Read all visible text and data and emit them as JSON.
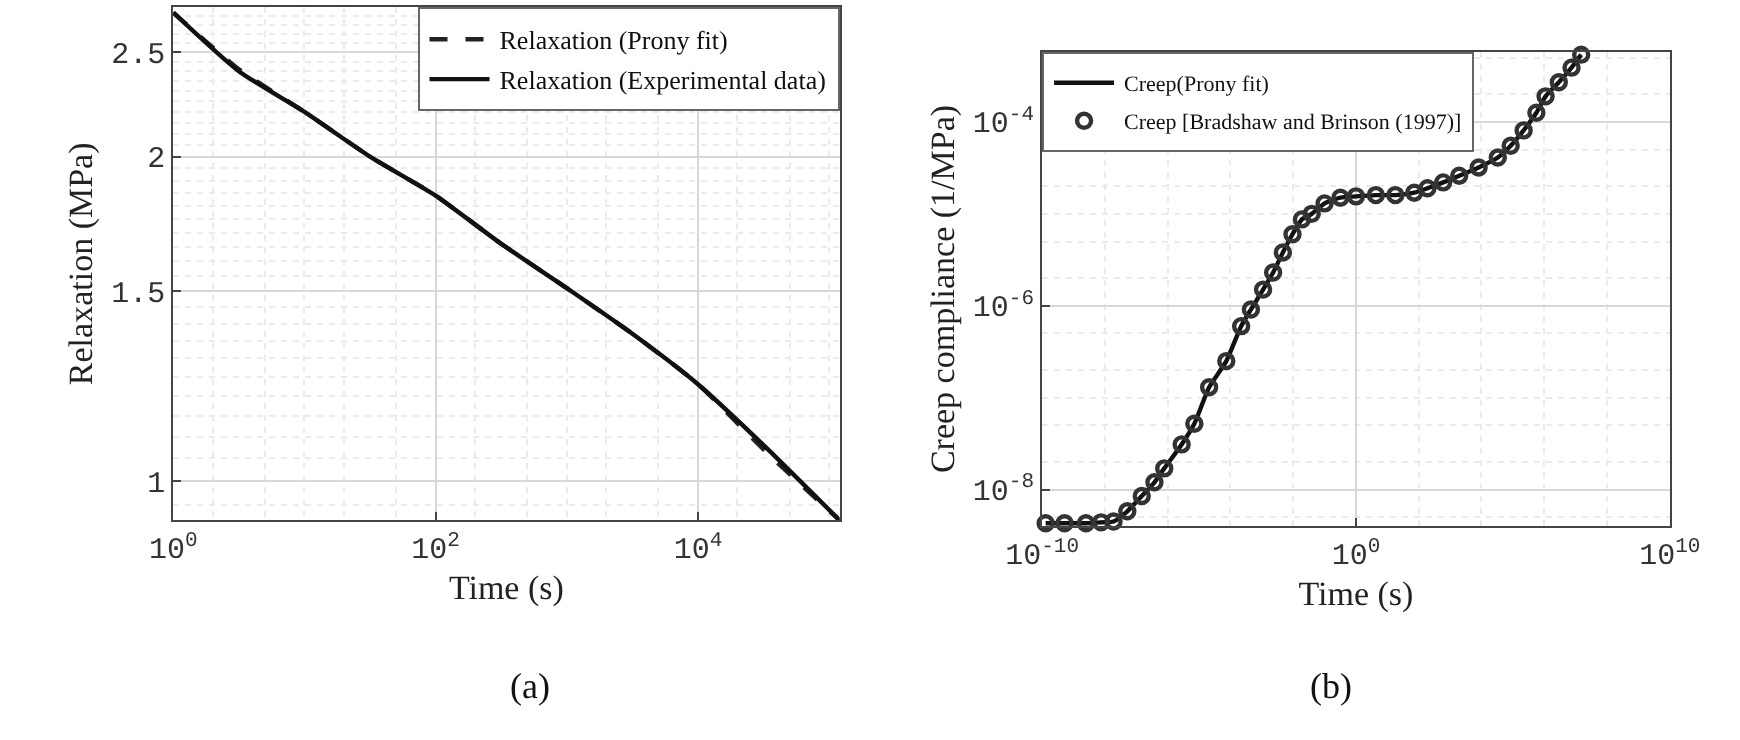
{
  "chart_data": [
    {
      "type": "line",
      "xlabel": "Time (s)",
      "ylabel": "Relaxation (MPa)",
      "log": "xy",
      "grid": true,
      "legend": "top right",
      "marker": "none",
      "annotations": [
        "(a)"
      ],
      "xlim": [
        1,
        120000
      ],
      "xticks": [
        {
          "value": 1,
          "label": "10$^{0}$"
        },
        {
          "value": 100,
          "label": "10$^{2}$"
        },
        {
          "value": 10000,
          "label": "10$^{4}$"
        }
      ],
      "ylim": [
        0.92,
        2.75
      ],
      "yticks": [
        1,
        1.5,
        2,
        2.5
      ],
      "x": [
        1,
        3.16,
        10,
        31.6,
        100,
        316,
        1000,
        3162,
        10000,
        31623,
        120000
      ],
      "series": [
        {
          "name": "Relaxation (Prony fit)",
          "color": "#222222",
          "line_style": "dashed",
          "values": [
            2.72,
            2.41,
            2.2,
            2.0,
            1.84,
            1.66,
            1.51,
            1.37,
            1.23,
            1.07,
            0.92
          ]
        },
        {
          "name": "Relaxation (Experimental data)",
          "color": "#111111",
          "line_style": "solid",
          "values": [
            2.72,
            2.4,
            2.2,
            2.0,
            1.84,
            1.66,
            1.51,
            1.37,
            1.23,
            1.08,
            0.92
          ]
        }
      ]
    },
    {
      "type": "line",
      "xlabel": "Time (s)",
      "ylabel": "Creep compliance (1/MPa)",
      "log": "xy",
      "grid": true,
      "legend": "top left",
      "annotations": [
        "(b)"
      ],
      "xlim": [
        1e-10,
        10000000000.0
      ],
      "xticks": [
        {
          "value": 1e-10,
          "label": "10$^{-10}$"
        },
        {
          "value": 1,
          "label": "10$^{0}$"
        },
        {
          "value": 10000000000.0,
          "label": "10$^{10}$"
        }
      ],
      "ylim": [
        4e-09,
        0.00058
      ],
      "yticks": [
        {
          "value": 1e-08,
          "label": "10$^{-8}$"
        },
        {
          "value": 1e-06,
          "label": "10$^{-6}$"
        },
        {
          "value": 0.0001,
          "label": "10$^{-4}$"
        }
      ],
      "x": [
        1.3e-10,
        5.2e-10,
        2.5e-09,
        7.6e-09,
        1.9e-08,
        5.2e-08,
        1.5e-07,
        3.8e-07,
        7.8e-07,
        2.8e-06,
        7.1e-06,
        2.1e-05,
        7.4e-05,
        0.00022,
        0.00045,
        0.0011,
        0.0023,
        0.0047,
        0.0095,
        0.019,
        0.039,
        0.1,
        0.32,
        1,
        4.3,
        18,
        72,
        190,
        600,
        1950,
        8100,
        33000,
        85000,
        220000,
        560000,
        1100000,
        2900000,
        7400000,
        15000000
      ],
      "series": [
        {
          "name": "Creep(Prony fit)",
          "type": "line",
          "marker": "none",
          "line_style": "solid",
          "color": "#111111",
          "values": [
            4.3e-09,
            4.3e-09,
            4.3e-09,
            4.4e-09,
            4.5e-09,
            5.8e-09,
            8.5e-09,
            1.2e-08,
            1.7e-08,
            3.1e-08,
            5.2e-08,
            1.3e-07,
            2.5e-07,
            6e-07,
            9.1e-07,
            1.5e-06,
            2.3e-06,
            3.8e-06,
            6e-06,
            8.7e-06,
            1e-05,
            1.3e-05,
            1.5e-05,
            1.55e-05,
            1.6e-05,
            1.6e-05,
            1.7e-05,
            1.9e-05,
            2.2e-05,
            2.6e-05,
            3.2e-05,
            4.1e-05,
            5.5e-05,
            8.1e-05,
            0.000126,
            0.00019,
            0.00027,
            0.00039,
            0.00054
          ]
        },
        {
          "name": "Creep [Bradshaw and Brinson (1997)]",
          "type": "scatter",
          "marker": "circle",
          "color": "#333333",
          "values": [
            4.3e-09,
            4.3e-09,
            4.3e-09,
            4.4e-09,
            4.5e-09,
            5.8e-09,
            8.5e-09,
            1.2e-08,
            1.7e-08,
            3.1e-08,
            5.2e-08,
            1.3e-07,
            2.5e-07,
            6e-07,
            9.1e-07,
            1.5e-06,
            2.3e-06,
            3.8e-06,
            6e-06,
            8.7e-06,
            1e-05,
            1.3e-05,
            1.5e-05,
            1.55e-05,
            1.6e-05,
            1.6e-05,
            1.7e-05,
            1.9e-05,
            2.2e-05,
            2.6e-05,
            3.2e-05,
            4.1e-05,
            5.5e-05,
            8.1e-05,
            0.000126,
            0.00019,
            0.00027,
            0.00039,
            0.00054
          ]
        }
      ]
    }
  ]
}
